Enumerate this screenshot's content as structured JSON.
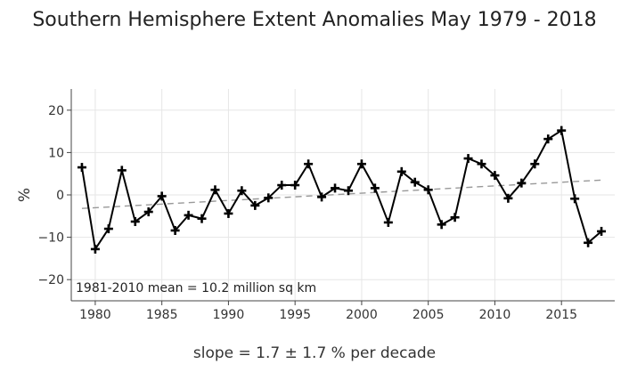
{
  "chart_data": {
    "type": "line",
    "title": "Southern Hemisphere Extent Anomalies May 1979 - 2018",
    "xlabel": "",
    "ylabel": "%",
    "xlim": [
      1978.2,
      2019
    ],
    "ylim": [
      -25,
      25
    ],
    "x_ticks": [
      1980,
      1985,
      1990,
      1995,
      2000,
      2005,
      2010,
      2015
    ],
    "y_ticks": [
      -20,
      -10,
      0,
      10,
      20
    ],
    "grid": true,
    "series": [
      {
        "type": "line",
        "marker": "plus",
        "color": "#000000",
        "x": [
          1979,
          1980,
          1981,
          1982,
          1983,
          1984,
          1985,
          1986,
          1987,
          1988,
          1989,
          1990,
          1991,
          1992,
          1993,
          1994,
          1995,
          1996,
          1997,
          1998,
          1999,
          2000,
          2001,
          2002,
          2003,
          2004,
          2005,
          2006,
          2007,
          2008,
          2009,
          2010,
          2011,
          2012,
          2013,
          2014,
          2015,
          2016,
          2017,
          2018
        ],
        "y": [
          6.5,
          -12.8,
          -8.0,
          5.8,
          -6.3,
          -4.0,
          -0.3,
          -8.4,
          -4.8,
          -5.6,
          1.2,
          -4.4,
          1.0,
          -2.5,
          -0.7,
          2.3,
          2.3,
          7.3,
          -0.5,
          1.6,
          1.0,
          7.3,
          1.6,
          -6.5,
          5.5,
          3.0,
          1.2,
          -7.0,
          -5.3,
          8.6,
          7.3,
          4.6,
          -0.8,
          2.8,
          7.3,
          13.2,
          15.2,
          -0.9,
          -11.3,
          -8.6
        ]
      },
      {
        "type": "trend",
        "dashed": true,
        "color": "#999999",
        "x": [
          1979,
          2018
        ],
        "y": [
          -3.2,
          3.5
        ]
      }
    ],
    "annotations": {
      "mean_note": "1981-2010 mean = 10.2 million sq km",
      "slope_note": "slope = 1.7 ± 1.7 % per decade"
    }
  }
}
